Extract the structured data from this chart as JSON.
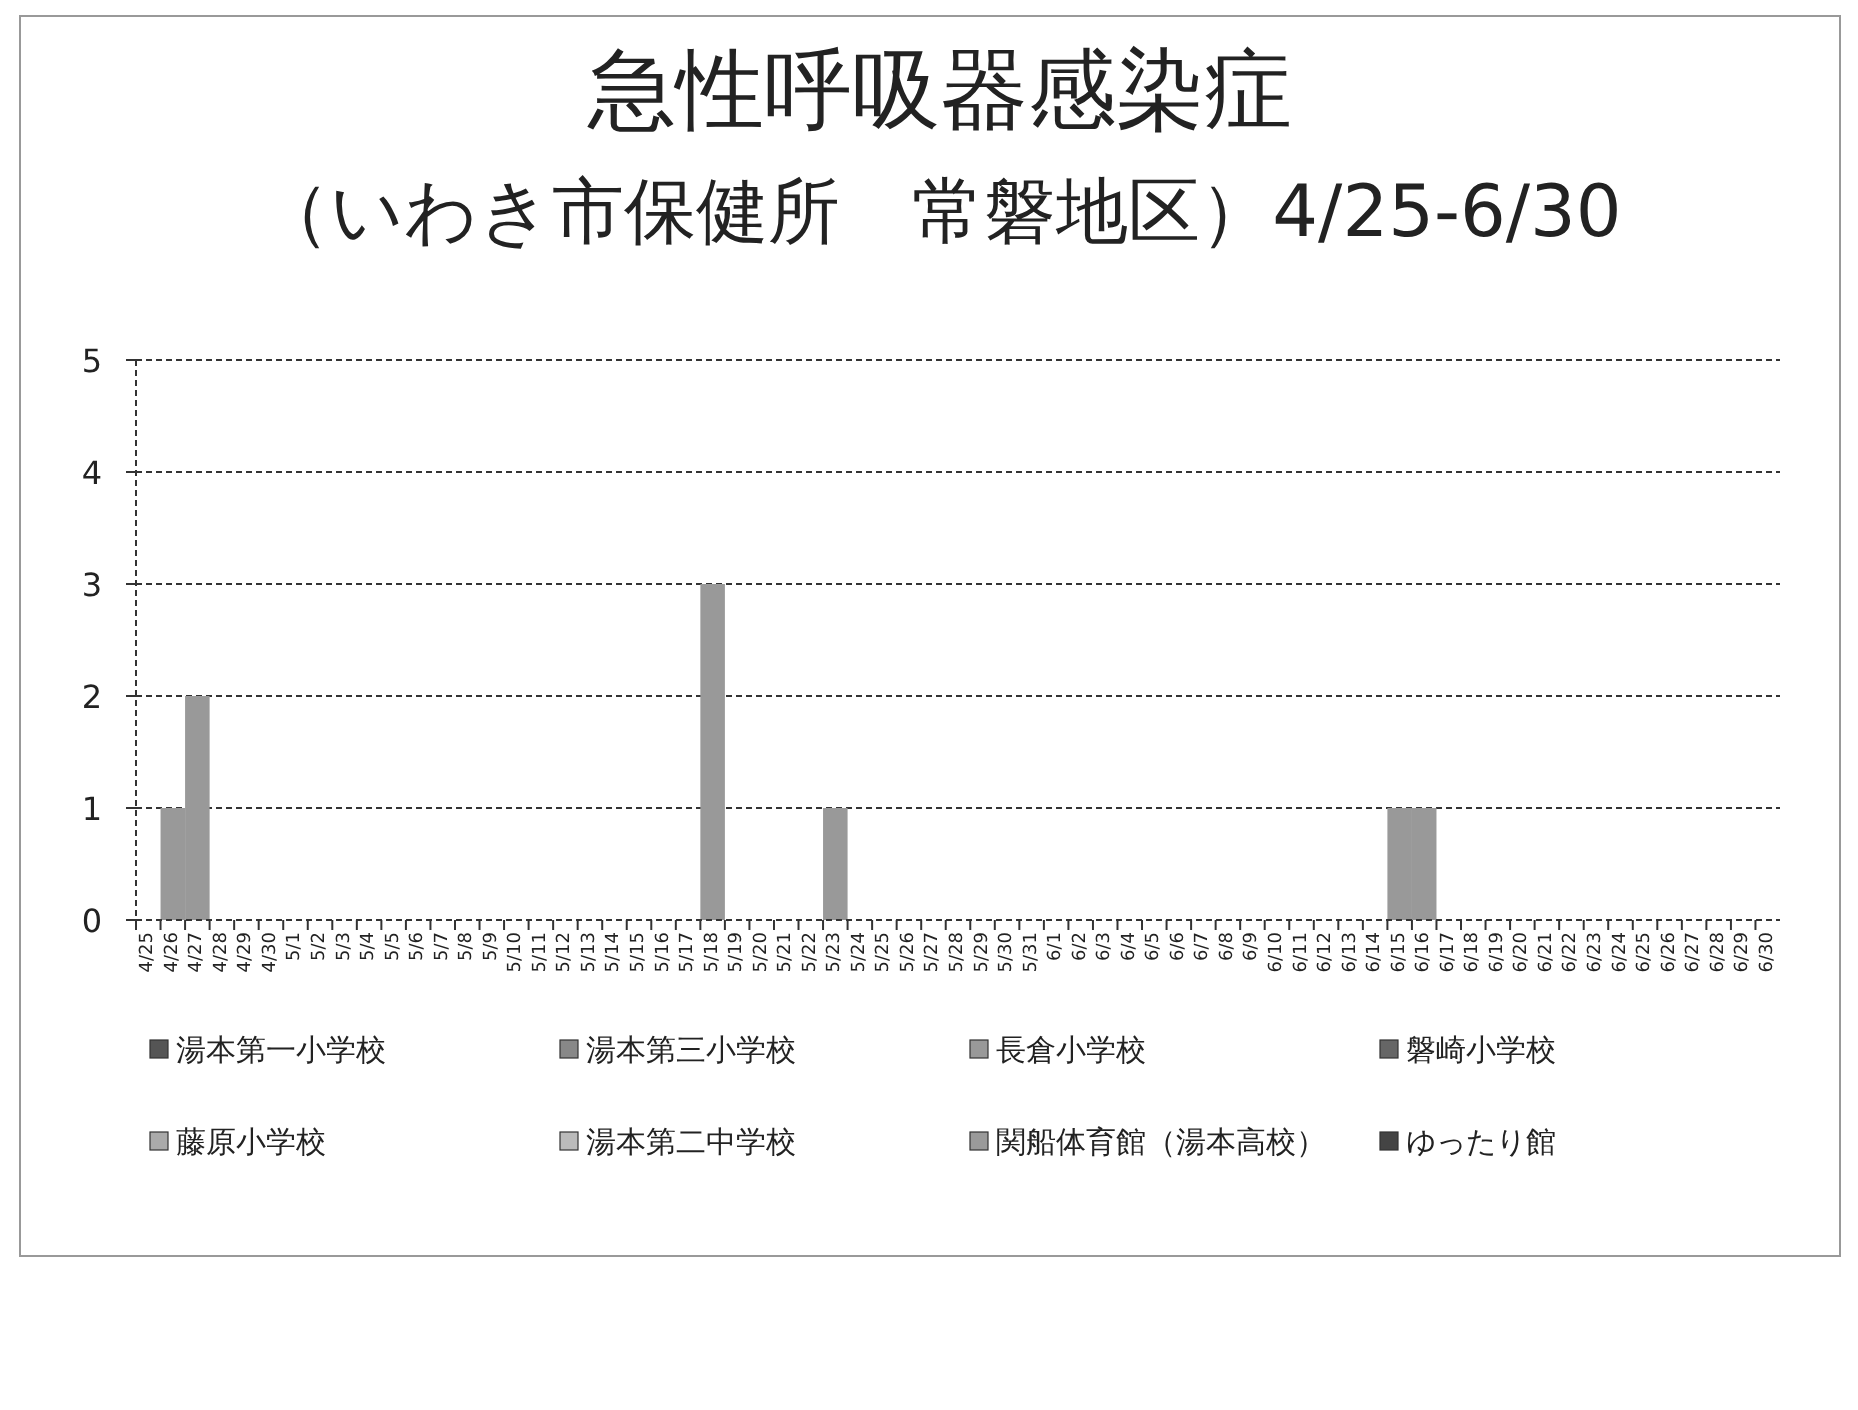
{
  "chart_data": {
    "type": "bar",
    "title": "急性呼吸器感染症",
    "subtitle": "（いわき市保健所　常磐地区）4/25-6/30",
    "categories": [
      "4/25",
      "4/26",
      "4/27",
      "4/28",
      "4/29",
      "4/30",
      "5/1",
      "5/2",
      "5/3",
      "5/4",
      "5/5",
      "5/6",
      "5/7",
      "5/8",
      "5/9",
      "5/10",
      "5/11",
      "5/12",
      "5/13",
      "5/14",
      "5/15",
      "5/16",
      "5/17",
      "5/18",
      "5/19",
      "5/20",
      "5/21",
      "5/22",
      "5/23",
      "5/24",
      "5/25",
      "5/26",
      "5/27",
      "5/28",
      "5/29",
      "5/30",
      "5/31",
      "6/1",
      "6/2",
      "6/3",
      "6/4",
      "6/5",
      "6/6",
      "6/7",
      "6/8",
      "6/9",
      "6/10",
      "6/11",
      "6/12",
      "6/13",
      "6/14",
      "6/15",
      "6/16",
      "6/17",
      "6/18",
      "6/19",
      "6/20",
      "6/21",
      "6/22",
      "6/23",
      "6/24",
      "6/25",
      "6/26",
      "6/27",
      "6/28",
      "6/29",
      "6/30"
    ],
    "series": [
      {
        "name": "湯本第一小学校",
        "color": "#555555",
        "values": [
          0,
          0,
          0,
          0,
          0,
          0,
          0,
          0,
          0,
          0,
          0,
          0,
          0,
          0,
          0,
          0,
          0,
          0,
          0,
          0,
          0,
          0,
          0,
          0,
          0,
          0,
          0,
          0,
          0,
          0,
          0,
          0,
          0,
          0,
          0,
          0,
          0,
          0,
          0,
          0,
          0,
          0,
          0,
          0,
          0,
          0,
          0,
          0,
          0,
          0,
          0,
          0,
          0,
          0,
          0,
          0,
          0,
          0,
          0,
          0,
          0,
          0,
          0,
          0,
          0,
          0,
          0
        ]
      },
      {
        "name": "湯本第三小学校",
        "color": "#888888",
        "values": [
          0,
          0,
          0,
          0,
          0,
          0,
          0,
          0,
          0,
          0,
          0,
          0,
          0,
          0,
          0,
          0,
          0,
          0,
          0,
          0,
          0,
          0,
          0,
          0,
          0,
          0,
          0,
          0,
          0,
          0,
          0,
          0,
          0,
          0,
          0,
          0,
          0,
          0,
          0,
          0,
          0,
          0,
          0,
          0,
          0,
          0,
          0,
          0,
          0,
          0,
          0,
          0,
          0,
          0,
          0,
          0,
          0,
          0,
          0,
          0,
          0,
          0,
          0,
          0,
          0,
          0,
          0
        ]
      },
      {
        "name": "長倉小学校",
        "color": "#999999",
        "values": [
          0,
          1,
          2,
          0,
          0,
          0,
          0,
          0,
          0,
          0,
          0,
          0,
          0,
          0,
          0,
          0,
          0,
          0,
          0,
          0,
          0,
          0,
          0,
          3,
          0,
          0,
          0,
          0,
          1,
          0,
          0,
          0,
          0,
          0,
          0,
          0,
          0,
          0,
          0,
          0,
          0,
          0,
          0,
          0,
          0,
          0,
          0,
          0,
          0,
          0,
          0,
          1,
          1,
          0,
          0,
          0,
          0,
          0,
          0,
          0,
          0,
          0,
          0,
          0,
          0,
          0,
          0
        ]
      },
      {
        "name": "磐崎小学校",
        "color": "#666666",
        "values": [
          0,
          0,
          0,
          0,
          0,
          0,
          0,
          0,
          0,
          0,
          0,
          0,
          0,
          0,
          0,
          0,
          0,
          0,
          0,
          0,
          0,
          0,
          0,
          0,
          0,
          0,
          0,
          0,
          0,
          0,
          0,
          0,
          0,
          0,
          0,
          0,
          0,
          0,
          0,
          0,
          0,
          0,
          0,
          0,
          0,
          0,
          0,
          0,
          0,
          0,
          0,
          0,
          0,
          0,
          0,
          0,
          0,
          0,
          0,
          0,
          0,
          0,
          0,
          0,
          0,
          0,
          0
        ]
      },
      {
        "name": "藤原小学校",
        "color": "#aaaaaa",
        "values": [
          0,
          0,
          0,
          0,
          0,
          0,
          0,
          0,
          0,
          0,
          0,
          0,
          0,
          0,
          0,
          0,
          0,
          0,
          0,
          0,
          0,
          0,
          0,
          0,
          0,
          0,
          0,
          0,
          0,
          0,
          0,
          0,
          0,
          0,
          0,
          0,
          0,
          0,
          0,
          0,
          0,
          0,
          0,
          0,
          0,
          0,
          0,
          0,
          0,
          0,
          0,
          0,
          0,
          0,
          0,
          0,
          0,
          0,
          0,
          0,
          0,
          0,
          0,
          0,
          0,
          0,
          0
        ]
      },
      {
        "name": "湯本第二中学校",
        "color": "#bbbbbb",
        "values": [
          0,
          0,
          0,
          0,
          0,
          0,
          0,
          0,
          0,
          0,
          0,
          0,
          0,
          0,
          0,
          0,
          0,
          0,
          0,
          0,
          0,
          0,
          0,
          0,
          0,
          0,
          0,
          0,
          0,
          0,
          0,
          0,
          0,
          0,
          0,
          0,
          0,
          0,
          0,
          0,
          0,
          0,
          0,
          0,
          0,
          0,
          0,
          0,
          0,
          0,
          0,
          0,
          0,
          0,
          0,
          0,
          0,
          0,
          0,
          0,
          0,
          0,
          0,
          0,
          0,
          0,
          0
        ]
      },
      {
        "name": "関船体育館（湯本高校）",
        "color": "#9a9a9a",
        "values": [
          0,
          0,
          0,
          0,
          0,
          0,
          0,
          0,
          0,
          0,
          0,
          0,
          0,
          0,
          0,
          0,
          0,
          0,
          0,
          0,
          0,
          0,
          0,
          0,
          0,
          0,
          0,
          0,
          0,
          0,
          0,
          0,
          0,
          0,
          0,
          0,
          0,
          0,
          0,
          0,
          0,
          0,
          0,
          0,
          0,
          0,
          0,
          0,
          0,
          0,
          0,
          0,
          0,
          0,
          0,
          0,
          0,
          0,
          0,
          0,
          0,
          0,
          0,
          0,
          0,
          0,
          0
        ]
      },
      {
        "name": "ゆったり館",
        "color": "#444444",
        "values": [
          0,
          0,
          0,
          0,
          0,
          0,
          0,
          0,
          0,
          0,
          0,
          0,
          0,
          0,
          0,
          0,
          0,
          0,
          0,
          0,
          0,
          0,
          0,
          0,
          0,
          0,
          0,
          0,
          0,
          0,
          0,
          0,
          0,
          0,
          0,
          0,
          0,
          0,
          0,
          0,
          0,
          0,
          0,
          0,
          0,
          0,
          0,
          0,
          0,
          0,
          0,
          0,
          0,
          0,
          0,
          0,
          0,
          0,
          0,
          0,
          0,
          0,
          0,
          0,
          0,
          0,
          0
        ]
      }
    ],
    "ylim": [
      0,
      5
    ],
    "yticks": [
      0,
      1,
      2,
      3,
      4,
      5
    ],
    "grid": "y",
    "legend": "bottom"
  }
}
